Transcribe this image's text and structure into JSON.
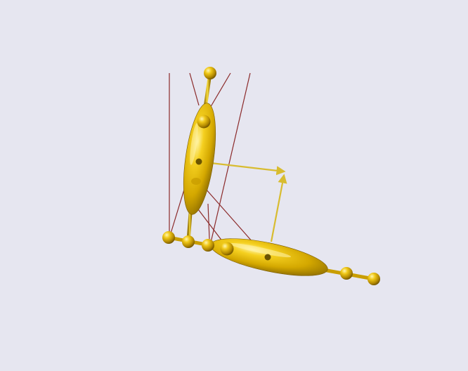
{
  "viewport": {
    "background": "#e6e6f0"
  },
  "colors": {
    "body_gold": "#e8bc10",
    "body_highlight": "#fff3a0",
    "body_shadow": "#8a6a00",
    "joint_dark": "#6b5400",
    "tendon": "#8b2a2a",
    "vector_arrow": "#d8bc30"
  },
  "scene": {
    "segments": [
      {
        "name": "upper-segment",
        "kind": "ellipsoid"
      },
      {
        "name": "lower-segment",
        "kind": "ellipsoid"
      }
    ],
    "tendon_count": 7,
    "joint_sphere_count": 9,
    "arrow_count": 2,
    "icons": [
      "rotate-view-icon"
    ]
  }
}
